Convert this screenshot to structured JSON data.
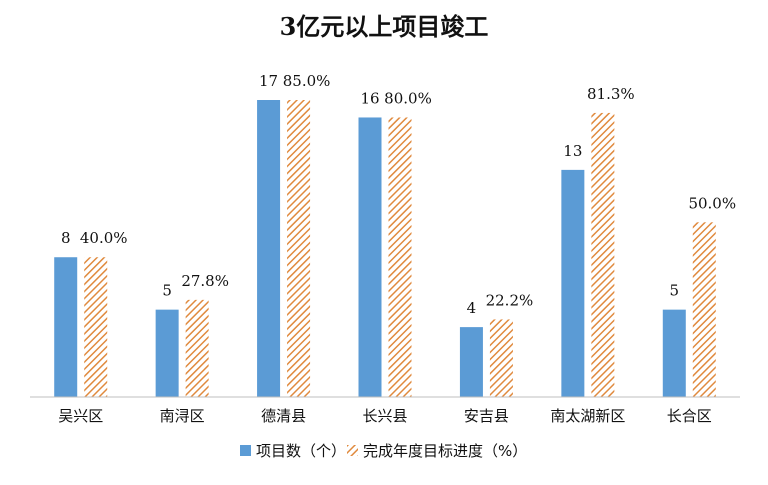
{
  "chart_data": {
    "type": "bar",
    "title": "3亿元以上项目竣工",
    "categories": [
      "吴兴区",
      "南浔区",
      "德清县",
      "长兴县",
      "安吉县",
      "南太湖新区",
      "长合区"
    ],
    "series": [
      {
        "name": "项目数（个）",
        "values": [
          8,
          5,
          17,
          16,
          4,
          13,
          5
        ],
        "labels": [
          "8",
          "5",
          "17",
          "16",
          "4",
          "13",
          "5"
        ],
        "color": "#5B9BD5",
        "fill": "solid"
      },
      {
        "name": "完成年度目标进度（%）",
        "values": [
          40.0,
          27.8,
          85.0,
          80.0,
          22.2,
          81.3,
          50.0
        ],
        "labels": [
          "40.0%",
          "27.8%",
          "85.0%",
          "80.0%",
          "22.2%",
          "81.3%",
          "50.0%"
        ],
        "color": "#E08A3E",
        "fill": "diagonal-hatch"
      }
    ],
    "xlabel": "",
    "ylabel": "",
    "grid": false,
    "legend_position": "bottom"
  }
}
